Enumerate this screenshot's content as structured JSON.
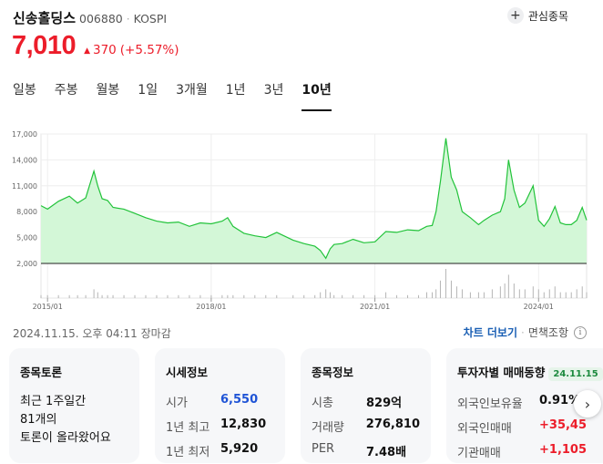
{
  "stock": {
    "name": "신송홀딩스",
    "code": "006880",
    "market": "KOSPI",
    "watch_label": "관심종목",
    "price": "7,010",
    "change": "370",
    "change_pct": "(+5.57%)"
  },
  "tabs": [
    {
      "label": "일봉"
    },
    {
      "label": "주봉"
    },
    {
      "label": "월봉"
    },
    {
      "label": "1일"
    },
    {
      "label": "3개월"
    },
    {
      "label": "1년"
    },
    {
      "label": "3년"
    },
    {
      "label": "10년",
      "active": true
    }
  ],
  "chart_data": {
    "type": "area",
    "y_ticks": [
      "17,000",
      "14,000",
      "11,000",
      "8,000",
      "5,000",
      "2,000"
    ],
    "y_tick_values": [
      17000,
      14000,
      11000,
      8000,
      5000,
      2000
    ],
    "ylim": [
      2000,
      17000
    ],
    "x_ticks": [
      "2015/01",
      "2018/01",
      "2021/01",
      "2024/01"
    ],
    "x_tick_values": [
      2015.0,
      2018.0,
      2021.0,
      2024.0
    ],
    "xlim": [
      2014.88,
      2024.88
    ],
    "x": [
      2014.88,
      2015.0,
      2015.2,
      2015.4,
      2015.55,
      2015.7,
      2015.85,
      2015.92,
      2016.0,
      2016.1,
      2016.2,
      2016.4,
      2016.6,
      2016.8,
      2017.0,
      2017.2,
      2017.4,
      2017.6,
      2017.8,
      2018.0,
      2018.2,
      2018.3,
      2018.4,
      2018.6,
      2018.8,
      2019.0,
      2019.2,
      2019.5,
      2019.7,
      2019.9,
      2020.0,
      2020.1,
      2020.18,
      2020.25,
      2020.4,
      2020.6,
      2020.8,
      2021.0,
      2021.2,
      2021.4,
      2021.6,
      2021.8,
      2021.95,
      2022.05,
      2022.12,
      2022.2,
      2022.3,
      2022.4,
      2022.5,
      2022.6,
      2022.75,
      2022.9,
      2023.0,
      2023.15,
      2023.3,
      2023.38,
      2023.45,
      2023.55,
      2023.65,
      2023.75,
      2023.9,
      2024.0,
      2024.1,
      2024.2,
      2024.3,
      2024.4,
      2024.5,
      2024.6,
      2024.7,
      2024.8,
      2024.88
    ],
    "values": [
      8700,
      8300,
      9200,
      9800,
      9000,
      9600,
      12700,
      11000,
      9500,
      9300,
      8500,
      8300,
      7800,
      7300,
      6900,
      6700,
      6800,
      6300,
      6700,
      6600,
      6900,
      7300,
      6300,
      5500,
      5200,
      5000,
      5600,
      4700,
      4300,
      4000,
      3500,
      2600,
      3700,
      4200,
      4300,
      4800,
      4400,
      4500,
      5700,
      5600,
      5900,
      5800,
      6300,
      6400,
      8000,
      11500,
      16500,
      12000,
      10500,
      8000,
      7300,
      6500,
      7000,
      7600,
      8000,
      9500,
      14000,
      10500,
      8500,
      9000,
      11000,
      7000,
      6300,
      7200,
      8600,
      6700,
      6500,
      6500,
      7000,
      8500,
      7010
    ],
    "volume": [
      1,
      1,
      1,
      1,
      1,
      1,
      3,
      2,
      1,
      1,
      1,
      1,
      1,
      1,
      1,
      1,
      1,
      1,
      1,
      1,
      1,
      1,
      1,
      1,
      1,
      1,
      1,
      1,
      1,
      1,
      2,
      3,
      2,
      1,
      1,
      1,
      1,
      1,
      2,
      1,
      1,
      1,
      2,
      2,
      3,
      6,
      10,
      6,
      4,
      3,
      2,
      2,
      2,
      3,
      4,
      5,
      8,
      5,
      3,
      3,
      4,
      3,
      2,
      3,
      4,
      2,
      2,
      2,
      3,
      4,
      2
    ],
    "line_color": "#22c33a",
    "fill_color": "#d3f7d7"
  },
  "meta": {
    "timestamp": "2024.11.15. 오후 04:11 장마감",
    "chart_more": "차트 더보기",
    "separator": "·",
    "disclaimer": "면책조항"
  },
  "cards": {
    "board": {
      "title": "종목토론",
      "line1": "최근 1주일간",
      "line2": "81개의",
      "line3": "토론이 올라왔어요"
    },
    "market": {
      "title": "시세정보",
      "rows": [
        {
          "k": "시가",
          "v": "6,550"
        },
        {
          "k": "1년 최고",
          "v": "12,830"
        },
        {
          "k": "1년 최저",
          "v": "5,920"
        }
      ]
    },
    "info": {
      "title": "종목정보",
      "rows": [
        {
          "k": "시총",
          "v": "829억"
        },
        {
          "k": "거래량",
          "v": "276,810"
        },
        {
          "k": "PER",
          "v": "7.48배"
        }
      ]
    },
    "investor": {
      "title": "투자자별 매매동향",
      "date": "24.11.15",
      "rows": [
        {
          "k": "외국인보유율",
          "v": "0.91%"
        },
        {
          "k": "외국인매매",
          "v": "+35,45"
        },
        {
          "k": "기관매매",
          "v": "+1,105"
        }
      ]
    }
  },
  "colors": {
    "up": "#ec1d2a",
    "accent_blue": "#1a5fb4",
    "open_price": "#1f54d6"
  }
}
